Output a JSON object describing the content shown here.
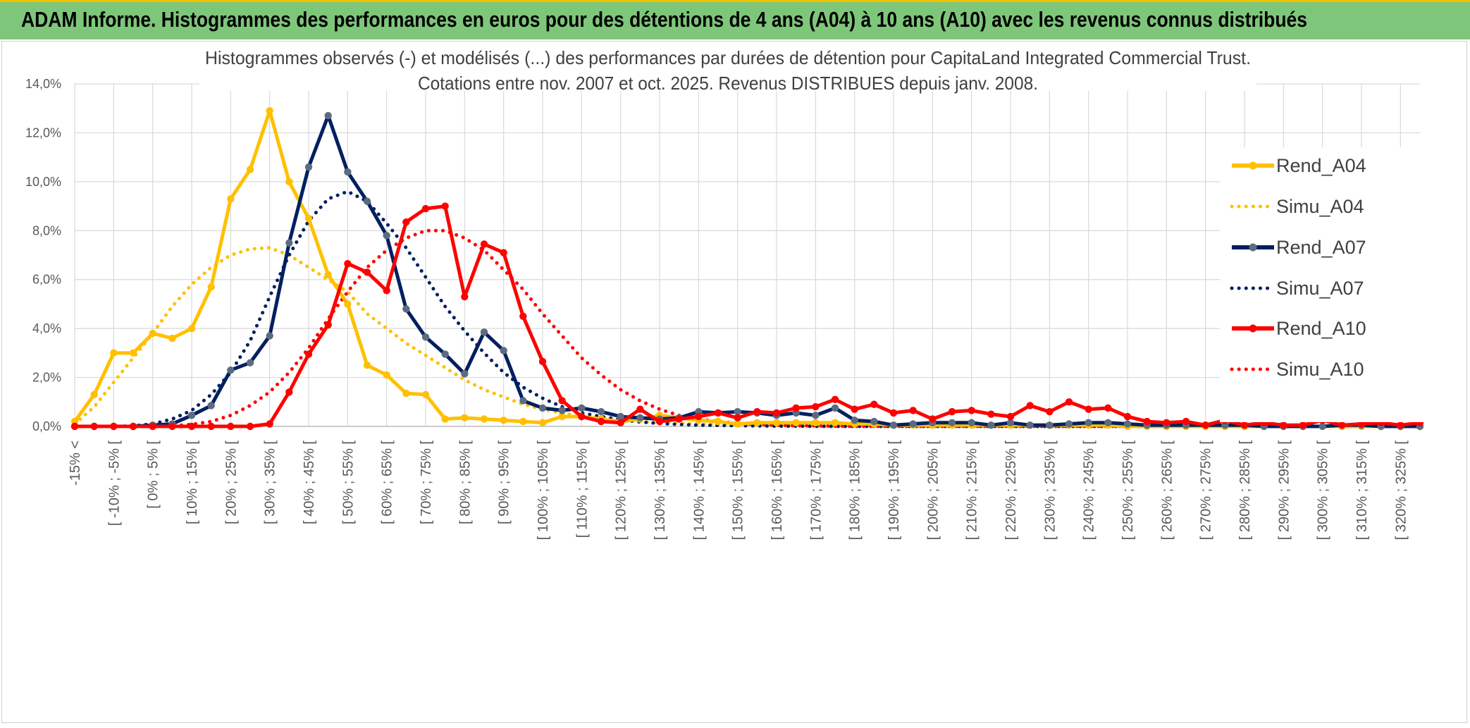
{
  "banner": {
    "title": "ADAM Informe. Histogrammes des performances en euros pour des détentions de 4 ans (A04) à 10 ans (A10) avec les revenus connus distribués"
  },
  "chart_data": {
    "type": "line",
    "title_lines": [
      "Histogrammes observés (-) et modélisés (...) des performances par durées de détention pour CapitaLand Integrated Commercial Trust.",
      "Cotations entre nov. 2007 et oct. 2025. Revenus DISTRIBUES depuis janv. 2008."
    ],
    "xlabel": "",
    "ylabel": "",
    "ylim": [
      0,
      14
    ],
    "y_ticks": [
      "0,0%",
      "2,0%",
      "4,0%",
      "6,0%",
      "8,0%",
      "10,0%",
      "12,0%",
      "14,0%"
    ],
    "grid": true,
    "legend_position": "right",
    "categories": [
      "-15% <",
      "[ -15% ; -10% [",
      "[ -10% ; -5% [",
      "[ -5% ; 0% [",
      "[ 0% ; 5% [",
      "[ 5% ; 10% [",
      "[ 10% ; 15% [",
      "[ 15% ; 20% [",
      "[ 20% ; 25% [",
      "[ 25% ; 30% [",
      "[ 30% ; 35% [",
      "[ 35% ; 40% [",
      "[ 40% ; 45% [",
      "[ 45% ; 50% [",
      "[ 50% ; 55% [",
      "[ 55% ; 60% [",
      "[ 60% ; 65% [",
      "[ 65% ; 70% [",
      "[ 70% ; 75% [",
      "[ 75% ; 80% [",
      "[ 80% ; 85% [",
      "[ 85% ; 90% [",
      "[ 90% ; 95% [",
      "[ 95% ; 100% [",
      "[ 100% ; 105% [",
      "[ 105% ; 110% [",
      "[ 110% ; 115% [",
      "[ 115% ; 120% [",
      "[ 120% ; 125% [",
      "[ 125% ; 130% [",
      "[ 130% ; 135% [",
      "[ 135% ; 140% [",
      "[ 140% ; 145% [",
      "[ 145% ; 150% [",
      "[ 150% ; 155% [",
      "[ 155% ; 160% [",
      "[ 160% ; 165% [",
      "[ 165% ; 170% [",
      "[ 170% ; 175% [",
      "[ 175% ; 180% [",
      "[ 180% ; 185% [",
      "[ 185% ; 190% [",
      "[ 190% ; 195% [",
      "[ 195% ; 200% [",
      "[ 200% ; 205% [",
      "[ 205% ; 210% [",
      "[ 210% ; 215% [",
      "[ 215% ; 220% [",
      "[ 220% ; 225% [",
      "[ 225% ; 230% [",
      "[ 230% ; 235% [",
      "[ 235% ; 240% [",
      "[ 240% ; 245% [",
      "[ 245% ; 250% [",
      "[ 250% ; 255% [",
      "[ 255% ; 260% [",
      "[ 260% ; 265% [",
      "[ 265% ; 270% [",
      "[ 270% ; 275% [",
      "[ 275% ; 280% [",
      "[ 280% ; 285% [",
      "[ 285% ; 290% [",
      "[ 290% ; 295% [",
      "[ 295% ; 300% [",
      "[ 300% ; 305% [",
      "[ 305% ; 310% [",
      "[ 310% ; 315% [",
      "[ 315% ; 320% [",
      "[ 320% ; 325% [",
      "[ 325% ; 330% ["
    ],
    "category_labels_shown": [
      "-15% <",
      "[ -10% ; -5% [",
      "[ 0% ; 5% [",
      "[ 10% ; 15% [",
      "[ 20% ; 25% [",
      "[ 30% ; 35% [",
      "[ 40% ; 45% [",
      "[ 50% ; 55% [",
      "[ 60% ; 65% [",
      "[ 70% ; 75% [",
      "[ 80% ; 85% [",
      "[ 90% ; 95% [",
      "[ 100% ; 105% [",
      "[ 110% ; 115% [",
      "[ 120% ; 125% [",
      "[ 130% ; 135% [",
      "[ 140% ; 145% [",
      "[ 150% ; 155% [",
      "[ 160% ; 165% [",
      "[ 170% ; 175% [",
      "[ 180% ; 185% [",
      "[ 190% ; 195% [",
      "[ 200% ; 205% [",
      "[ 210% ; 215% [",
      "[ 220% ; 225% [",
      "[ 230% ; 235% [",
      "[ 240% ; 245% [",
      "[ 250% ; 255% [",
      "[ 260% ; 265% [",
      "[ 270% ; 275% [",
      "[ 280% ; 285% [",
      "[ 290% ; 295% [",
      "[ 300% ; 305% [",
      "[ 310% ; 315% [",
      "[ 320% ; 325% ["
    ],
    "series": [
      {
        "name": "Rend_A04",
        "style": "solid",
        "color": "#ffc000",
        "values": [
          0.2,
          1.3,
          3.0,
          3.0,
          3.8,
          3.6,
          4.0,
          5.7,
          9.3,
          10.5,
          12.9,
          10.0,
          8.5,
          6.2,
          5.0,
          2.5,
          2.1,
          1.35,
          1.3,
          0.3,
          0.35,
          0.3,
          0.25,
          0.2,
          0.15,
          0.4,
          0.4,
          0.3,
          0.2,
          0.3,
          0.45,
          0.35,
          0.25,
          0.2,
          0.1,
          0.15,
          0.15,
          0.15,
          0.15,
          0.15,
          0.1,
          0.1,
          0.05,
          0.05,
          0.05,
          0.05,
          0.05,
          0.05,
          0.05,
          0.05,
          0.05,
          0.05,
          0.05,
          0.05,
          0.0,
          0.0,
          0.0,
          0.0,
          0.0,
          0.0,
          0.0,
          0.0,
          0.0,
          0.0,
          0.0,
          0.0,
          0.0,
          0.0,
          0.0,
          0.0
        ]
      },
      {
        "name": "Simu_A04",
        "style": "dotted",
        "color": "#ffc000",
        "values": [
          0.1,
          0.8,
          1.8,
          2.8,
          3.8,
          4.9,
          5.8,
          6.5,
          7.0,
          7.25,
          7.3,
          7.0,
          6.5,
          6.0,
          5.5,
          4.6,
          4.0,
          3.4,
          2.9,
          2.4,
          1.9,
          1.5,
          1.2,
          0.9,
          0.7,
          0.55,
          0.4,
          0.3,
          0.25,
          0.2,
          0.15,
          0.12,
          0.1,
          0.08,
          0.06,
          0.05,
          0.04,
          0.03,
          0.02,
          0.02,
          0.02,
          0.01,
          0.01,
          0.01,
          0.01,
          0.0,
          0.0,
          0.0,
          0.0,
          0.0,
          0.0,
          0.0,
          0.0,
          0.0,
          0.0,
          0.0,
          0.0,
          0.0,
          0.0,
          0.0,
          0.0,
          0.0,
          0.0,
          0.0,
          0.0,
          0.0,
          0.0,
          0.0,
          0.0,
          0.0
        ]
      },
      {
        "name": "Rend_A07",
        "style": "solid",
        "color": "#002060",
        "values": [
          0.0,
          0.0,
          0.0,
          0.0,
          0.05,
          0.1,
          0.45,
          0.85,
          2.3,
          2.6,
          3.7,
          7.5,
          10.6,
          12.7,
          10.4,
          9.2,
          7.8,
          4.8,
          3.65,
          2.95,
          2.15,
          3.85,
          3.1,
          1.05,
          0.75,
          0.65,
          0.75,
          0.6,
          0.4,
          0.35,
          0.3,
          0.35,
          0.6,
          0.55,
          0.6,
          0.55,
          0.45,
          0.55,
          0.45,
          0.75,
          0.25,
          0.2,
          0.05,
          0.1,
          0.15,
          0.15,
          0.15,
          0.05,
          0.15,
          0.05,
          0.05,
          0.1,
          0.15,
          0.15,
          0.1,
          0.05,
          0.05,
          0.05,
          0.05,
          0.05,
          0.05,
          0.0,
          0.0,
          0.0,
          0.0,
          0.05,
          0.05,
          0.0,
          0.0,
          0.0
        ]
      },
      {
        "name": "Simu_A07",
        "style": "dotted",
        "color": "#002060",
        "values": [
          0.0,
          0.0,
          0.0,
          0.02,
          0.1,
          0.3,
          0.65,
          1.3,
          2.2,
          3.5,
          5.3,
          7.0,
          8.4,
          9.3,
          9.6,
          9.2,
          8.3,
          7.3,
          6.1,
          4.9,
          3.9,
          3.0,
          2.2,
          1.6,
          1.15,
          0.8,
          0.55,
          0.4,
          0.27,
          0.18,
          0.12,
          0.08,
          0.05,
          0.04,
          0.03,
          0.02,
          0.01,
          0.01,
          0.0,
          0.0,
          0.0,
          0.0,
          0.0,
          0.0,
          0.0,
          0.0,
          0.0,
          0.0,
          0.0,
          0.0,
          0.0,
          0.0,
          0.0,
          0.0,
          0.0,
          0.0,
          0.0,
          0.0,
          0.0,
          0.0,
          0.0,
          0.0,
          0.0,
          0.0,
          0.0,
          0.0,
          0.0,
          0.0,
          0.0,
          0.0
        ]
      },
      {
        "name": "Rend_A10",
        "style": "solid",
        "color": "#ff0000",
        "values": [
          0.0,
          0.0,
          0.0,
          0.0,
          0.0,
          0.0,
          0.0,
          0.0,
          0.0,
          0.0,
          0.1,
          1.4,
          2.95,
          4.15,
          6.65,
          6.3,
          5.55,
          8.35,
          8.9,
          9.0,
          5.3,
          7.45,
          7.1,
          4.5,
          2.65,
          1.05,
          0.4,
          0.2,
          0.15,
          0.7,
          0.2,
          0.3,
          0.4,
          0.55,
          0.35,
          0.6,
          0.55,
          0.75,
          0.8,
          1.1,
          0.7,
          0.9,
          0.55,
          0.65,
          0.3,
          0.6,
          0.65,
          0.5,
          0.4,
          0.85,
          0.6,
          1.0,
          0.7,
          0.75,
          0.4,
          0.2,
          0.15,
          0.2,
          0.05,
          0.25,
          0.05,
          0.15,
          0.05,
          0.05,
          0.25,
          0.05,
          0.1,
          0.15,
          0.05,
          0.15
        ]
      },
      {
        "name": "Simu_A10",
        "style": "dotted",
        "color": "#ff0000",
        "values": [
          0.0,
          0.0,
          0.0,
          0.0,
          0.0,
          0.02,
          0.08,
          0.2,
          0.45,
          0.85,
          1.4,
          2.2,
          3.2,
          4.4,
          5.5,
          6.5,
          7.2,
          7.7,
          8.0,
          8.0,
          7.7,
          7.2,
          6.4,
          5.6,
          4.6,
          3.7,
          2.8,
          2.1,
          1.5,
          1.05,
          0.7,
          0.45,
          0.3,
          0.2,
          0.13,
          0.08,
          0.05,
          0.03,
          0.02,
          0.01,
          0.0,
          0.0,
          0.0,
          0.0,
          0.0,
          0.0,
          0.0,
          0.0,
          0.0,
          0.0,
          0.0,
          0.0,
          0.0,
          0.0,
          0.0,
          0.0,
          0.0,
          0.0,
          0.0,
          0.0,
          0.0,
          0.0,
          0.0,
          0.0,
          0.0,
          0.0,
          0.0,
          0.0,
          0.0,
          0.0
        ]
      }
    ]
  }
}
